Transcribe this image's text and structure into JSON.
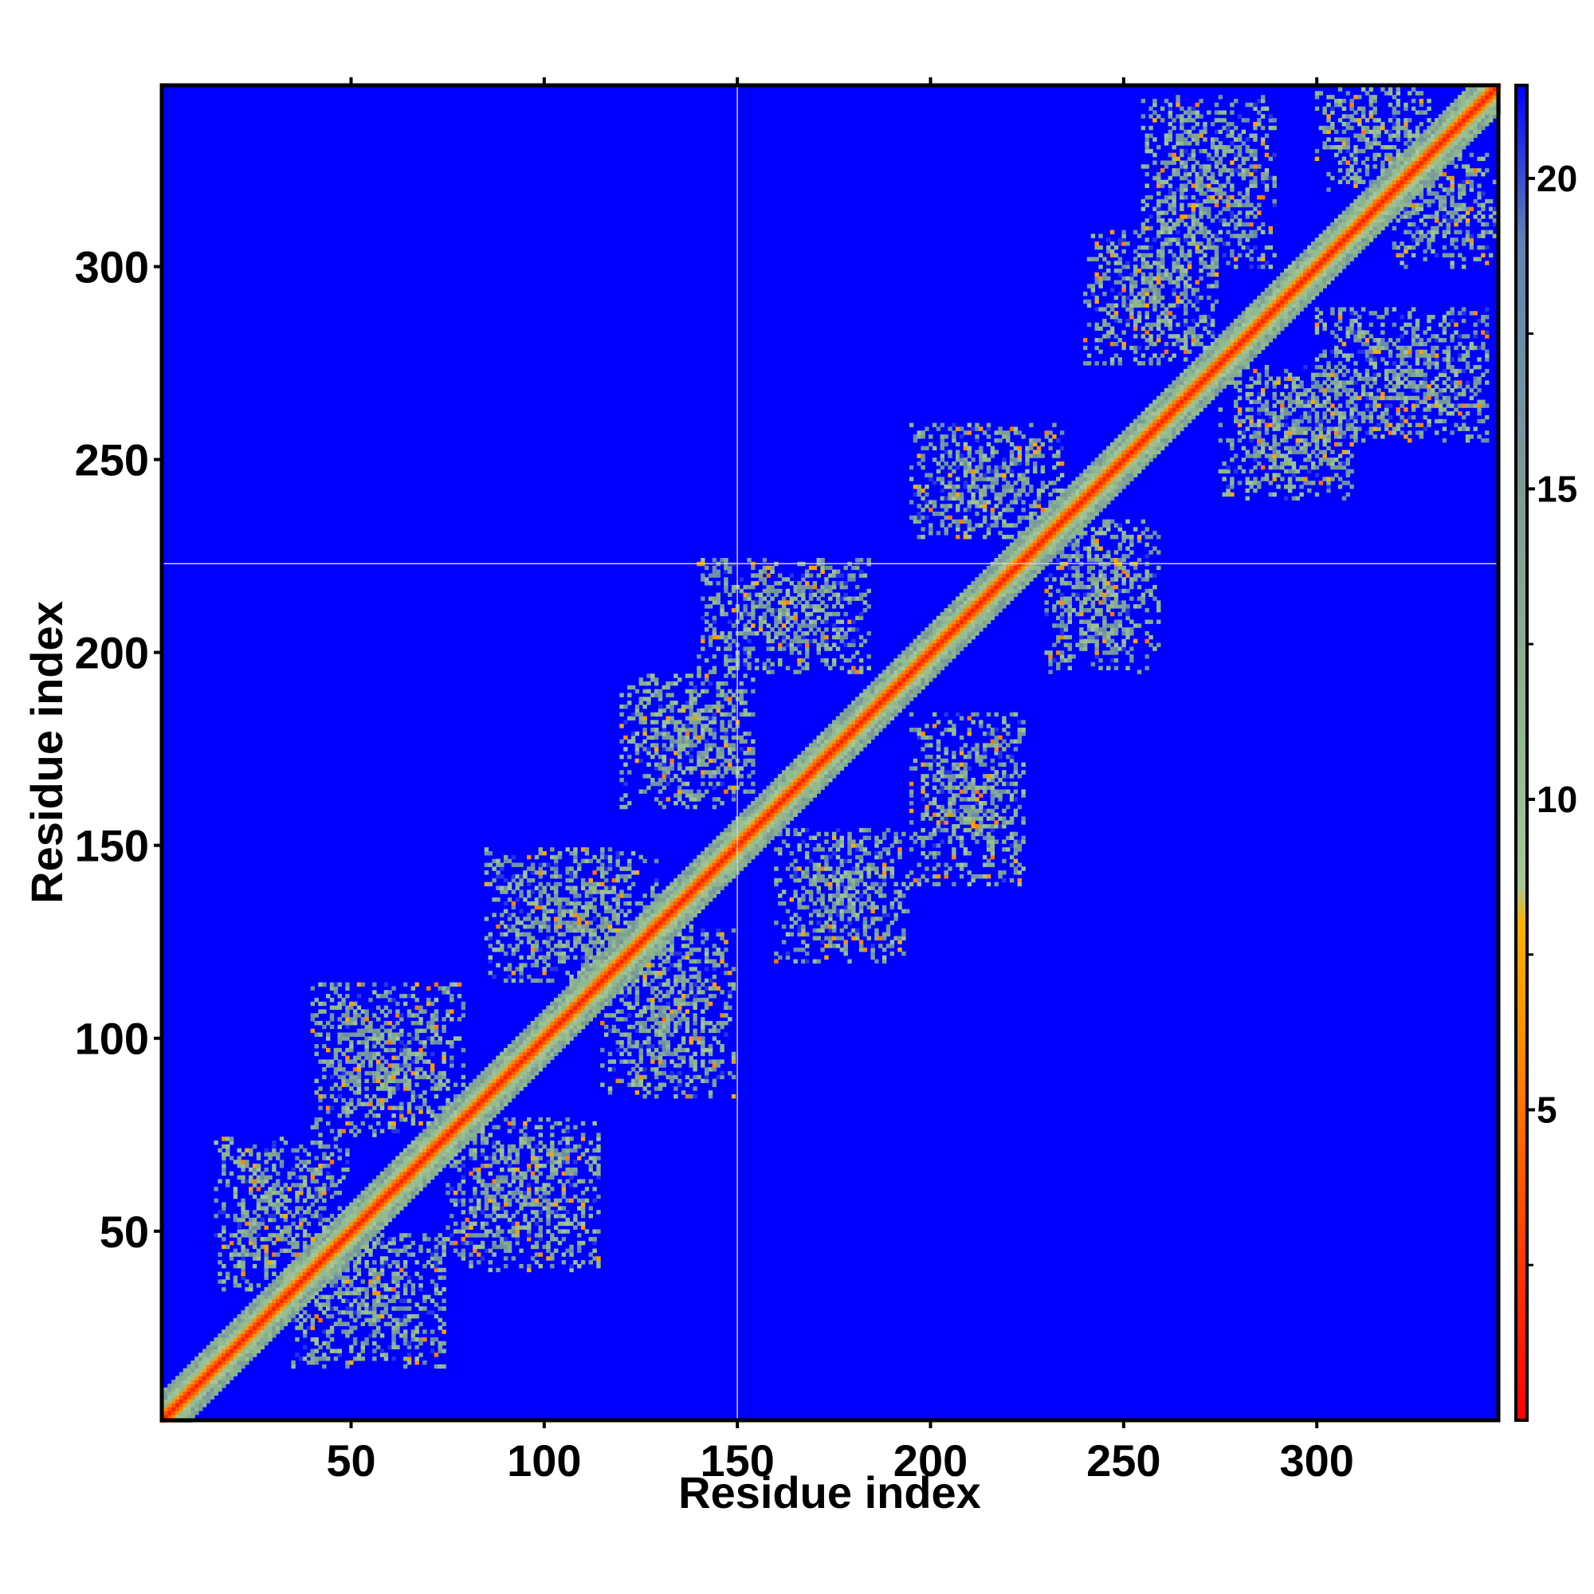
{
  "chart_data": {
    "type": "heatmap",
    "description_of_values": "pairwise residue distance map",
    "xlabel": "Residue index",
    "ylabel": "Residue index",
    "xlim": [
      1,
      347
    ],
    "ylim": [
      1,
      347
    ],
    "x_ticks": [
      50,
      100,
      150,
      200,
      250,
      300
    ],
    "y_ticks": [
      50,
      100,
      150,
      200,
      250,
      300
    ],
    "colorbar": {
      "ticks": [
        5,
        10,
        15,
        20
      ],
      "range": [
        0,
        21.5
      ],
      "stops": [
        {
          "value": 0,
          "color": "#ff0000"
        },
        {
          "value": 4,
          "color": "#ff5a00"
        },
        {
          "value": 6,
          "color": "#ff8c00"
        },
        {
          "value": 8,
          "color": "#ffb000"
        },
        {
          "value": 8.6,
          "color": "#a8c896"
        },
        {
          "value": 11,
          "color": "#8fb98f"
        },
        {
          "value": 15,
          "color": "#7c9c96"
        },
        {
          "value": 19,
          "color": "#5f84b4"
        },
        {
          "value": 21.5,
          "color": "#0000ff"
        }
      ]
    },
    "background_color": "#0000ff",
    "diagonal_color": "#ff0000",
    "crosshair": {
      "x": 150,
      "y": 223
    },
    "contact_blocks": [
      {
        "x": 35,
        "y": 15,
        "w": 40,
        "h": 35
      },
      {
        "x": 15,
        "y": 35,
        "w": 35,
        "h": 40
      },
      {
        "x": 75,
        "y": 40,
        "w": 40,
        "h": 40
      },
      {
        "x": 40,
        "y": 75,
        "w": 40,
        "h": 40
      },
      {
        "x": 115,
        "y": 85,
        "w": 35,
        "h": 45
      },
      {
        "x": 85,
        "y": 115,
        "w": 45,
        "h": 35
      },
      {
        "x": 160,
        "y": 120,
        "w": 35,
        "h": 35
      },
      {
        "x": 120,
        "y": 160,
        "w": 35,
        "h": 35
      },
      {
        "x": 195,
        "y": 140,
        "w": 30,
        "h": 45
      },
      {
        "x": 140,
        "y": 195,
        "w": 45,
        "h": 30
      },
      {
        "x": 230,
        "y": 195,
        "w": 30,
        "h": 40
      },
      {
        "x": 195,
        "y": 230,
        "w": 40,
        "h": 30
      },
      {
        "x": 275,
        "y": 240,
        "w": 35,
        "h": 35
      },
      {
        "x": 240,
        "y": 275,
        "w": 35,
        "h": 35
      },
      {
        "x": 300,
        "y": 255,
        "w": 45,
        "h": 35
      },
      {
        "x": 255,
        "y": 300,
        "w": 35,
        "h": 45
      },
      {
        "x": 320,
        "y": 300,
        "w": 27,
        "h": 30
      },
      {
        "x": 300,
        "y": 320,
        "w": 30,
        "h": 27
      }
    ]
  }
}
